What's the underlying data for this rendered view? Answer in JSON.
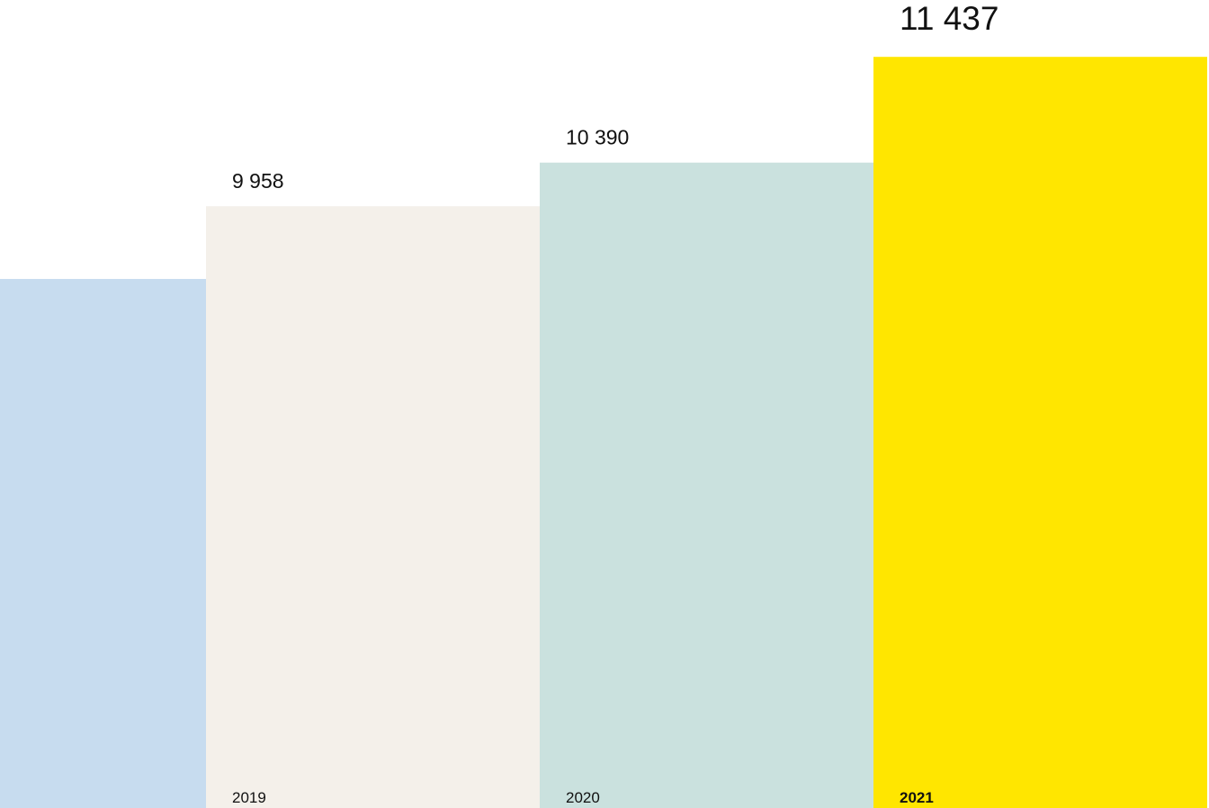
{
  "chart_data": {
    "type": "bar",
    "categories": [
      null,
      "2019",
      "2020",
      "2021"
    ],
    "values": [
      9238,
      9958,
      10390,
      11437
    ],
    "value_labels": [
      null,
      "9 958",
      "10 390",
      "11 437"
    ],
    "colors": [
      "#c7dcef",
      "#f4f0ea",
      "#cae1de",
      "#ffe600"
    ],
    "ylim": [
      4000,
      12000
    ]
  }
}
